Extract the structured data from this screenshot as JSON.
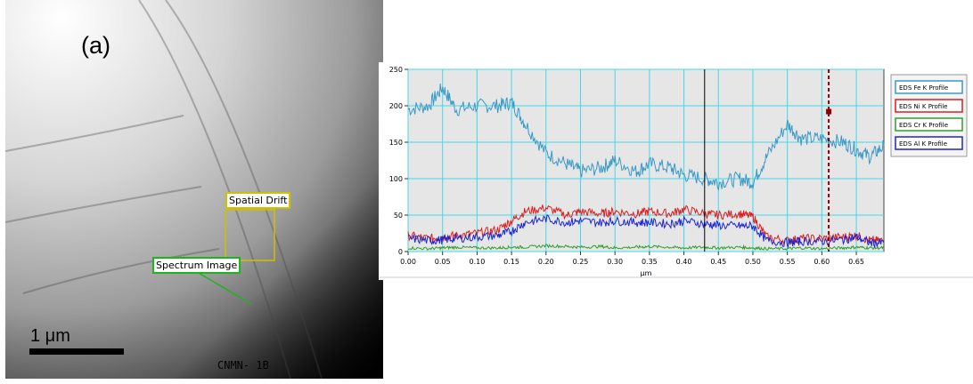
{
  "panel_label": "(a)",
  "micrograph": {
    "roi_drift_label": "Spatial Drift",
    "roi_spectrum_label": "Spectrum Image",
    "scale_bar_label": "1 μm",
    "instrument_label": "CNMN- 1B",
    "colors": {
      "drift": "#cfc000",
      "spectrum": "#1fb41f"
    }
  },
  "chart_data": {
    "type": "line",
    "xlabel": "μm",
    "ylabel": "",
    "xlim": [
      0,
      0.69
    ],
    "ylim": [
      0,
      250
    ],
    "xticks": [
      "0.00",
      "0.05",
      "0.10",
      "0.15",
      "0.20",
      "0.25",
      "0.30",
      "0.35",
      "0.40",
      "0.45",
      "0.50",
      "0.55",
      "0.60",
      "0.65"
    ],
    "yticks": [
      "0",
      "50",
      "100",
      "150",
      "200",
      "250"
    ],
    "grid": true,
    "legend_position": "right",
    "cursor_solid_x": 0.43,
    "cursor_dashed_x": 0.61,
    "x": [
      0.0,
      0.03,
      0.05,
      0.07,
      0.1,
      0.13,
      0.15,
      0.17,
      0.2,
      0.23,
      0.25,
      0.28,
      0.3,
      0.33,
      0.35,
      0.38,
      0.4,
      0.43,
      0.45,
      0.48,
      0.5,
      0.52,
      0.55,
      0.57,
      0.6,
      0.63,
      0.65,
      0.67,
      0.69
    ],
    "series": [
      {
        "name": "EDS Fe K Profile",
        "color": "#3a9ac6",
        "values": [
          195,
          200,
          225,
          195,
          200,
          200,
          205,
          175,
          135,
          120,
          110,
          115,
          125,
          110,
          120,
          115,
          105,
          100,
          95,
          100,
          95,
          130,
          175,
          155,
          155,
          150,
          140,
          130,
          145
        ]
      },
      {
        "name": "EDS Ni K Profile",
        "color": "#e01c1c",
        "values": [
          22,
          18,
          20,
          22,
          25,
          30,
          42,
          55,
          60,
          50,
          55,
          52,
          55,
          52,
          55,
          52,
          58,
          52,
          50,
          52,
          48,
          20,
          15,
          18,
          18,
          20,
          22,
          15,
          15
        ]
      },
      {
        "name": "EDS Cr K Profile",
        "color": "#2ca02c",
        "values": [
          5,
          4,
          5,
          6,
          5,
          5,
          6,
          6,
          8,
          7,
          6,
          7,
          5,
          6,
          7,
          6,
          5,
          6,
          5,
          6,
          5,
          4,
          4,
          5,
          4,
          5,
          6,
          5,
          5
        ]
      },
      {
        "name": "EDS Al K Profile",
        "color": "#1a24d6",
        "values": [
          18,
          15,
          16,
          18,
          20,
          22,
          28,
          40,
          45,
          40,
          42,
          40,
          42,
          40,
          40,
          38,
          42,
          38,
          36,
          35,
          35,
          15,
          12,
          14,
          14,
          16,
          20,
          12,
          12
        ]
      }
    ]
  }
}
